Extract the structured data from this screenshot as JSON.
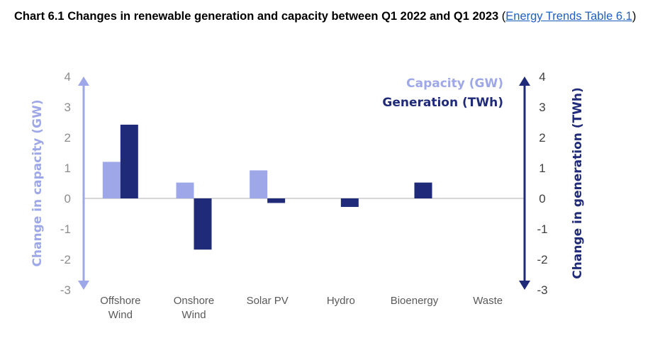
{
  "title": {
    "text": "Chart 6.1 Changes in renewable generation and capacity between Q1 2022 and Q1 2023",
    "link_text": "Energy Trends Table 6.1",
    "open_paren": "(",
    "close_paren": ")"
  },
  "colors": {
    "capacity": "#9ea8e8",
    "generation": "#1f2a78",
    "zero_line": "#c8c8c8",
    "tick_text": "#6b6b6b",
    "link": "#1f5fbf"
  },
  "chart_data": {
    "type": "bar",
    "categories": [
      "Offshore Wind",
      "Onshore Wind",
      "Solar PV",
      "Hydro",
      "Bioenergy",
      "Waste"
    ],
    "category_lines": [
      [
        "Offshore",
        "Wind"
      ],
      [
        "Onshore",
        "Wind"
      ],
      [
        "Solar PV"
      ],
      [
        "Hydro"
      ],
      [
        "Bioenergy"
      ],
      [
        "Waste"
      ]
    ],
    "series": [
      {
        "name": "Capacity (GW)",
        "axis": "left",
        "values": [
          1.2,
          0.52,
          0.92,
          0.0,
          0.0,
          0.0
        ]
      },
      {
        "name": "Generation (TWh)",
        "axis": "right",
        "values": [
          2.42,
          -1.68,
          -0.15,
          -0.28,
          0.52,
          0.0
        ]
      }
    ],
    "y_left": {
      "label": "Change in capacity (GW)",
      "lim": [
        -3,
        4
      ],
      "ticks": [
        4,
        3,
        2,
        1,
        0,
        -1,
        -2,
        -3
      ]
    },
    "y_right": {
      "label": "Change in generation (TWh)",
      "lim": [
        -3,
        4
      ],
      "ticks": [
        4,
        3,
        2,
        1,
        0,
        -1,
        -2,
        -3
      ]
    },
    "legend_placement": "top-right",
    "grid": false
  }
}
